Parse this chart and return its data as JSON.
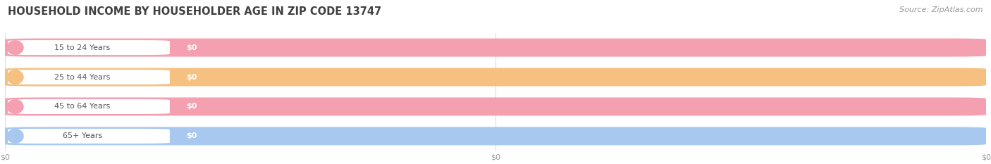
{
  "title": "HOUSEHOLD INCOME BY HOUSEHOLDER AGE IN ZIP CODE 13747",
  "source": "Source: ZipAtlas.com",
  "categories": [
    "15 to 24 Years",
    "25 to 44 Years",
    "45 to 64 Years",
    "65+ Years"
  ],
  "values": [
    0,
    0,
    0,
    0
  ],
  "bar_colors": [
    "#f4a0b0",
    "#f5c080",
    "#f4a0b0",
    "#a8c8f0"
  ],
  "bar_bg_color": "#efefef",
  "title_color": "#404040",
  "tick_label_color": "#999999",
  "source_color": "#999999",
  "figsize": [
    14.06,
    2.33
  ],
  "dpi": 100,
  "background_color": "#ffffff",
  "xtick_positions": [
    0.0,
    0.5,
    1.0
  ],
  "xtick_labels": [
    "$0",
    "$0",
    "$0"
  ]
}
